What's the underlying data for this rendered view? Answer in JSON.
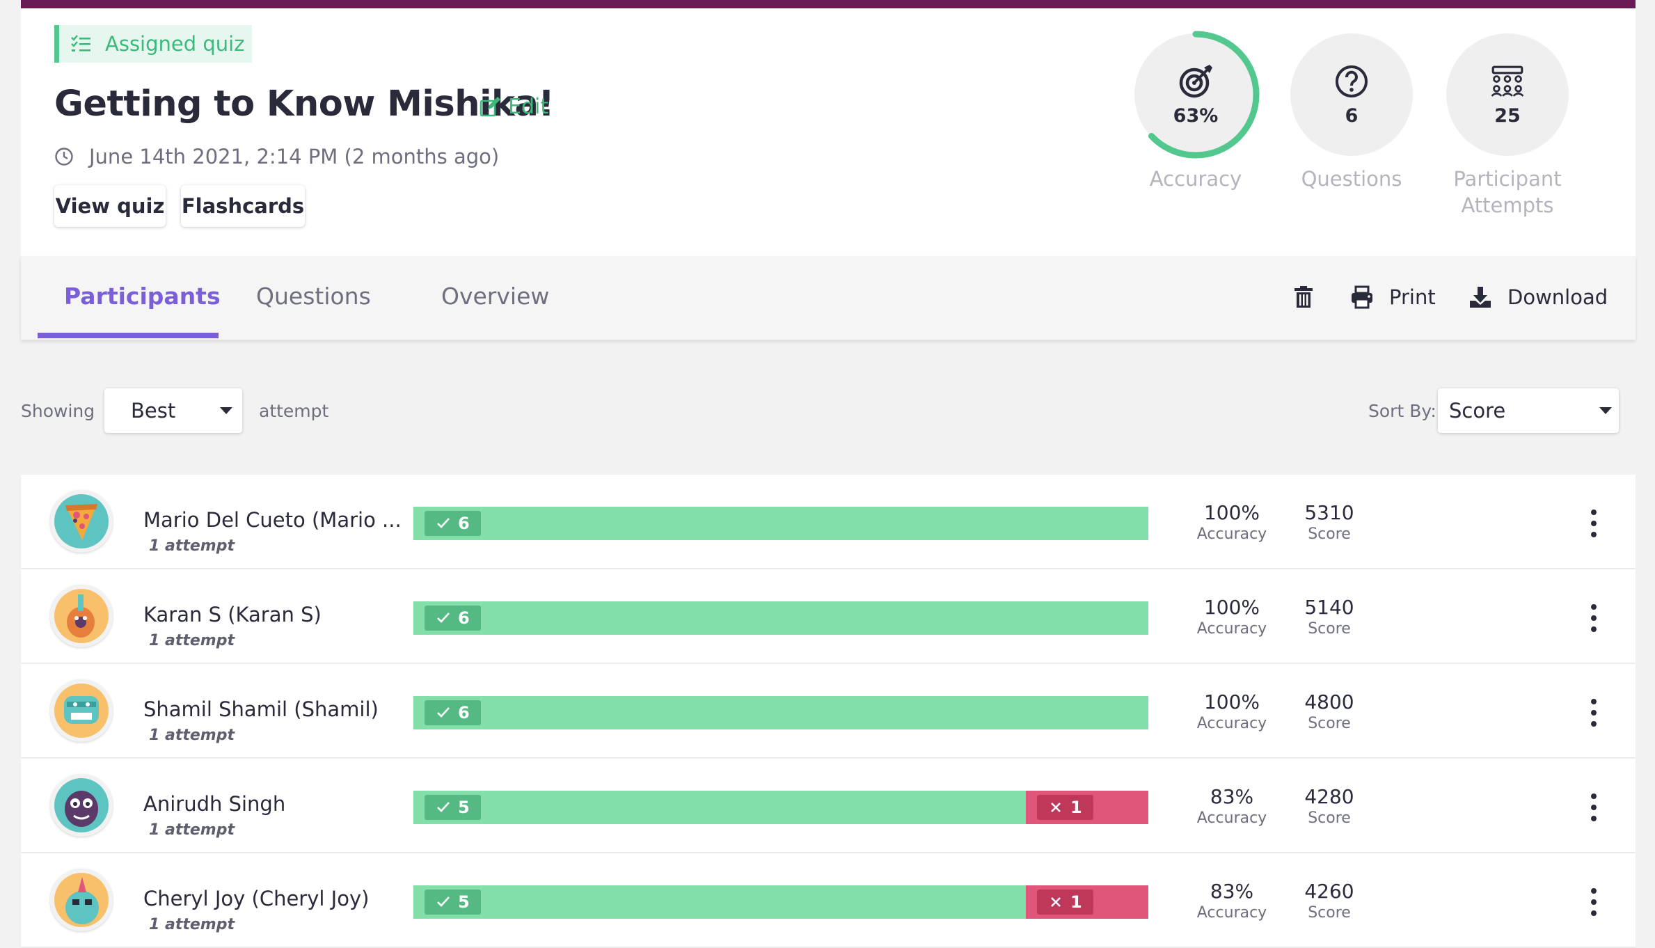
{
  "header": {
    "badge_label": "Assigned quiz",
    "title": "Getting to Know Mishika!",
    "edit_label": "Edit",
    "date": "June 14th 2021, 2:14 PM (2 months ago)",
    "view_quiz_label": "View quiz",
    "flashcards_label": "Flashcards"
  },
  "stats": [
    {
      "value": "63%",
      "label": "Accuracy",
      "icon": "target-icon",
      "progress": 0.63
    },
    {
      "value": "6",
      "label": "Questions",
      "icon": "question-circle-icon"
    },
    {
      "value": "25",
      "label": "Participant Attempts",
      "icon": "group-icon"
    }
  ],
  "tabs": [
    {
      "label": "Participants",
      "active": true
    },
    {
      "label": "Questions",
      "active": false
    },
    {
      "label": "Overview",
      "active": false
    }
  ],
  "toolbar": {
    "delete_icon": "trash-icon",
    "print_label": "Print",
    "download_label": "Download"
  },
  "filters": {
    "showing_label": "Showing",
    "attempt_select": "Best",
    "attempt_suffix": "attempt",
    "sort_label": "Sort By:",
    "sort_select": "Score"
  },
  "colors": {
    "accent": "#7b5fd8",
    "brand_bar": "#6a1b55",
    "correct": "#82dfa9",
    "incorrect": "#e0567a",
    "assigned": "#3cb97b"
  },
  "participants": [
    {
      "name": "Mario Del Cueto (Mario ...",
      "attempts": "1 attempt",
      "correct": 6,
      "incorrect": 0,
      "correct_label": "6",
      "incorrect_label": "",
      "accuracy": "100%",
      "accuracy_label": "Accuracy",
      "score": "5310",
      "score_label": "Score",
      "avatar": "pizza-avatar"
    },
    {
      "name": "Karan S (Karan S)",
      "attempts": "1 attempt",
      "correct": 6,
      "incorrect": 0,
      "correct_label": "6",
      "incorrect_label": "",
      "accuracy": "100%",
      "accuracy_label": "Accuracy",
      "score": "5140",
      "score_label": "Score",
      "avatar": "guitar-avatar"
    },
    {
      "name": "Shamil Shamil (Shamil)",
      "attempts": "1 attempt",
      "correct": 6,
      "incorrect": 0,
      "correct_label": "6",
      "incorrect_label": "",
      "accuracy": "100%",
      "accuracy_label": "Accuracy",
      "score": "4800",
      "score_label": "Score",
      "avatar": "robot-avatar"
    },
    {
      "name": "Anirudh Singh",
      "attempts": "1 attempt",
      "correct": 5,
      "incorrect": 1,
      "correct_label": "5",
      "incorrect_label": "1",
      "accuracy": "83%",
      "accuracy_label": "Accuracy",
      "score": "4280",
      "score_label": "Score",
      "avatar": "monster-avatar"
    },
    {
      "name": "Cheryl Joy (Cheryl Joy)",
      "attempts": "1 attempt",
      "correct": 5,
      "incorrect": 1,
      "correct_label": "5",
      "incorrect_label": "1",
      "accuracy": "83%",
      "accuracy_label": "Accuracy",
      "score": "4260",
      "score_label": "Score",
      "avatar": "unicorn-avatar"
    }
  ]
}
